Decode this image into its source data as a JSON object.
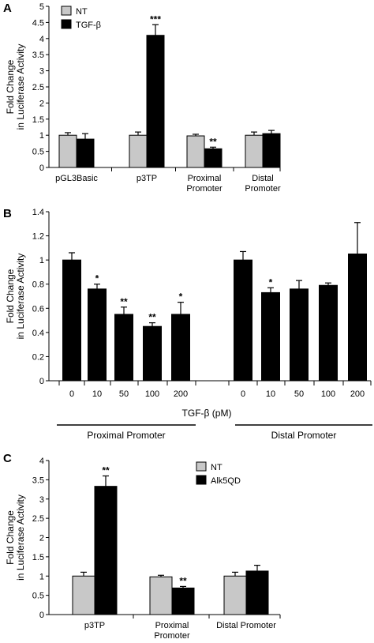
{
  "chart_data": [
    {
      "panel": "A",
      "type": "bar",
      "ylabel": "Fold Change in Luciferase Activity",
      "ylim": [
        0,
        5
      ],
      "yticks": [
        "0",
        "0.5",
        "1",
        "1.5",
        "2",
        "2.5",
        "3",
        "3.5",
        "4",
        "4.5",
        "5"
      ],
      "categories": [
        [
          "pGL3Basic"
        ],
        [
          "p3TP"
        ],
        [
          "Proximal",
          "Promoter"
        ],
        [
          "Distal",
          "Promoter"
        ]
      ],
      "series": [
        {
          "name": "NT",
          "color": "#c8c8c8",
          "values": [
            1.0,
            1.0,
            0.98,
            1.0
          ],
          "errors": [
            0.08,
            0.1,
            0.05,
            0.1
          ],
          "labels": [
            "",
            "",
            "",
            ""
          ]
        },
        {
          "name": "TGF-β",
          "color": "#000000",
          "values": [
            0.88,
            4.1,
            0.58,
            1.05
          ],
          "errors": [
            0.17,
            0.33,
            0.05,
            0.1
          ],
          "labels": [
            "",
            "***",
            "**",
            ""
          ]
        }
      ],
      "legend": "top-left"
    },
    {
      "panel": "B",
      "type": "bar",
      "ylabel": "Fold Change in Luciferase Activity",
      "xlabel": "TGF-β (pM)",
      "ylim": [
        0,
        1.4
      ],
      "yticks": [
        "0",
        "0.2",
        "0.4",
        "0.6",
        "0.8",
        "1",
        "1.2",
        "1.4"
      ],
      "groups": [
        {
          "name": "Proximal Promoter",
          "categories": [
            "0",
            "10",
            "50",
            "100",
            "200"
          ],
          "values": [
            1.0,
            0.76,
            0.55,
            0.45,
            0.55
          ],
          "errors": [
            0.06,
            0.04,
            0.06,
            0.03,
            0.1
          ],
          "labels": [
            "",
            "*",
            "**",
            "**",
            "*"
          ]
        },
        {
          "name": "Distal Promoter",
          "categories": [
            "0",
            "10",
            "50",
            "100",
            "200"
          ],
          "values": [
            1.0,
            0.73,
            0.76,
            0.79,
            1.05
          ],
          "errors": [
            0.07,
            0.04,
            0.07,
            0.02,
            0.26
          ],
          "labels": [
            "",
            "*",
            "",
            "",
            ""
          ]
        }
      ]
    },
    {
      "panel": "C",
      "type": "bar",
      "ylabel": "Fold Change in Luciferase Activity",
      "ylim": [
        0,
        4
      ],
      "yticks": [
        "0",
        "0.5",
        "1",
        "1.5",
        "2",
        "2.5",
        "3",
        "3.5",
        "4"
      ],
      "categories": [
        [
          "p3TP"
        ],
        [
          "Proximal",
          "Promoter"
        ],
        [
          "Distal Promoter"
        ]
      ],
      "series": [
        {
          "name": "NT",
          "color": "#c8c8c8",
          "values": [
            1.0,
            0.98,
            1.0
          ],
          "errors": [
            0.1,
            0.04,
            0.1
          ],
          "labels": [
            "",
            "",
            ""
          ]
        },
        {
          "name": "Alk5QD",
          "color": "#000000",
          "values": [
            3.33,
            0.69,
            1.13
          ],
          "errors": [
            0.27,
            0.04,
            0.15
          ],
          "labels": [
            "**",
            "**",
            ""
          ]
        }
      ],
      "legend": "top-right"
    }
  ]
}
